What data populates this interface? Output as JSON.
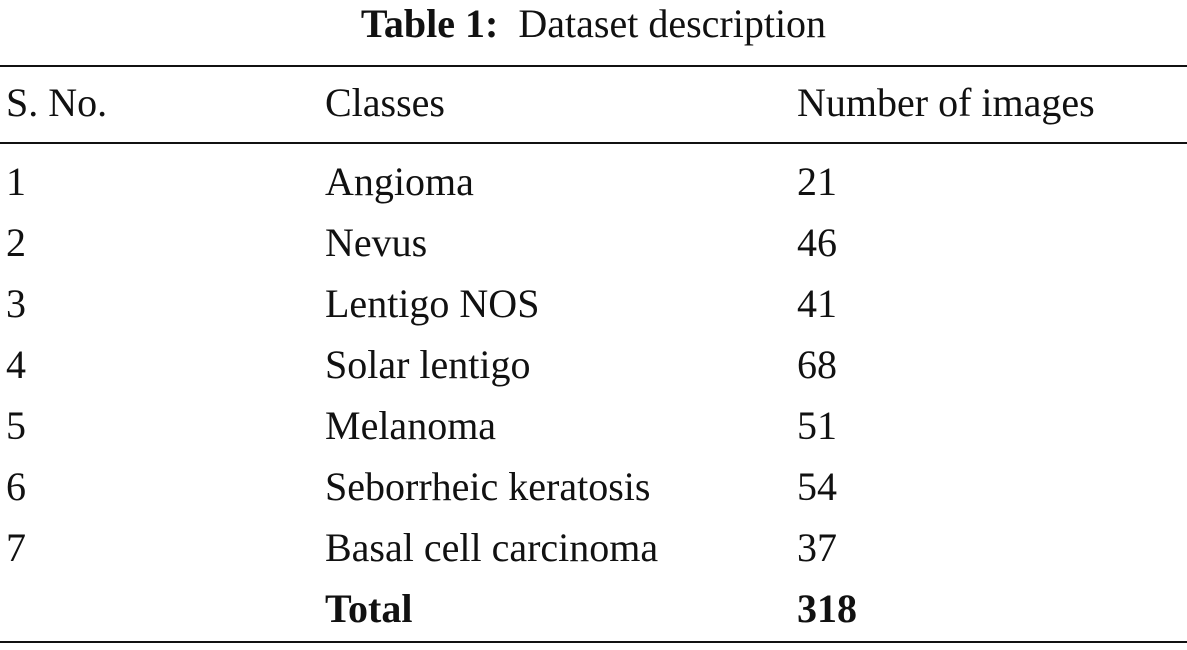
{
  "table": {
    "caption": {
      "label": "Table 1:",
      "text": "Dataset description"
    },
    "header": [
      "S. No.",
      "Classes",
      "Number of images"
    ],
    "rows": [
      [
        1,
        "Angioma",
        21
      ],
      [
        2,
        "Nevus",
        46
      ],
      [
        3,
        "Lentigo NOS",
        41
      ],
      [
        4,
        "Solar lentigo",
        68
      ],
      [
        5,
        "Melanoma",
        51
      ],
      [
        6,
        "Seborrheic keratosis",
        54
      ],
      [
        7,
        "Basal cell carcinoma",
        37
      ]
    ],
    "total": {
      "label": "Total",
      "value": 318
    }
  }
}
